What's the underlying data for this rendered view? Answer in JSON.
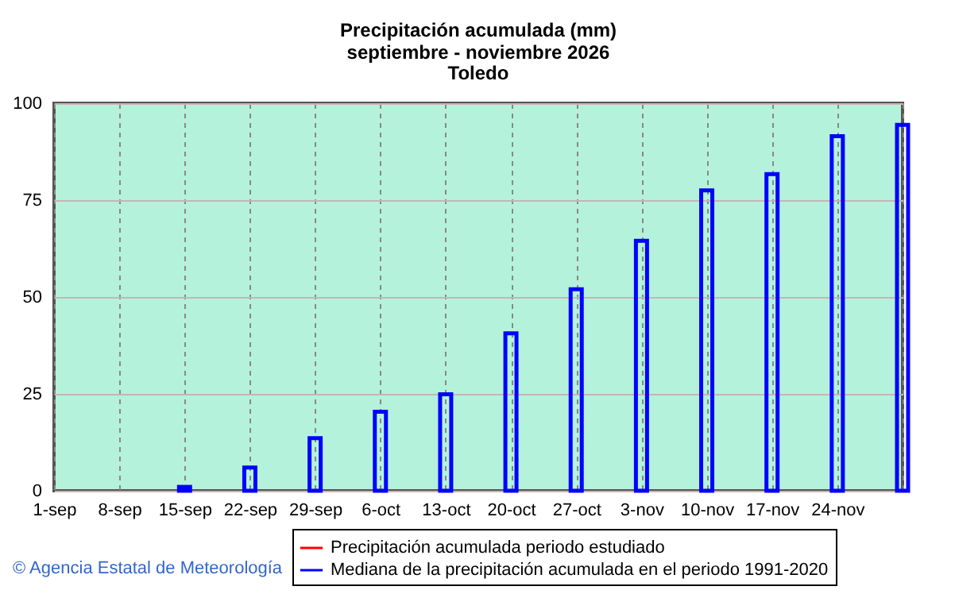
{
  "chart_data": {
    "type": "bar",
    "title": "Precipitación acumulada (mm)\nseptiembre - noviembre 2026",
    "subtitle": "Toledo",
    "categories": [
      "1-sep",
      "8-sep",
      "15-sep",
      "22-sep",
      "29-sep",
      "6-oct",
      "13-oct",
      "20-oct",
      "27-oct",
      "3-nov",
      "10-nov",
      "17-nov",
      "24-nov",
      null
    ],
    "series": [
      {
        "name": "Precipitación acumulada periodo estudiado",
        "color": "#ff0000",
        "values": [
          null,
          null,
          null,
          null,
          null,
          null,
          null,
          null,
          null,
          null,
          null,
          null,
          null,
          null
        ]
      },
      {
        "name": "Mediana de la precipitación acumulada en el periodo 1991-2020",
        "color": "#0000ff",
        "values": [
          null,
          null,
          1,
          6,
          13.6,
          20.4,
          24.9,
          40.6,
          52,
          64.5,
          77.5,
          81.7,
          91.5,
          94.4
        ]
      }
    ],
    "ylim": [
      0,
      100
    ],
    "yticks": [
      0,
      25,
      50,
      75,
      100
    ],
    "grid": true,
    "legend": "bottom",
    "annotations": [
      "© Agencia Estatal de Meteorología"
    ]
  }
}
